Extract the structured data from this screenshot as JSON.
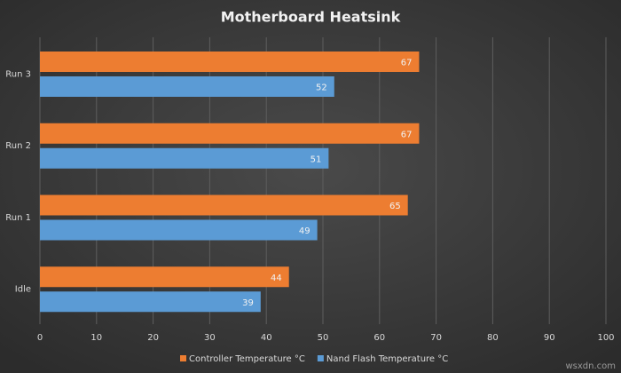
{
  "chart_data": {
    "type": "hbar",
    "title": "Motherboard Heatsink",
    "categories": [
      "Run 3",
      "Run 2",
      "Run 1",
      "Idle"
    ],
    "series": [
      {
        "name": "Controller Temperature °C",
        "color": "#ed7d31",
        "values": [
          67,
          67,
          65,
          44
        ]
      },
      {
        "name": "Nand Flash Temperature °C",
        "color": "#5b9bd5",
        "values": [
          52,
          51,
          49,
          39
        ]
      }
    ],
    "xlim": [
      0,
      100
    ],
    "xticks": [
      0,
      10,
      20,
      30,
      40,
      50,
      60,
      70,
      80,
      90,
      100
    ],
    "grid": true,
    "legend": "bottom",
    "watermark": "wsxdn.com"
  }
}
